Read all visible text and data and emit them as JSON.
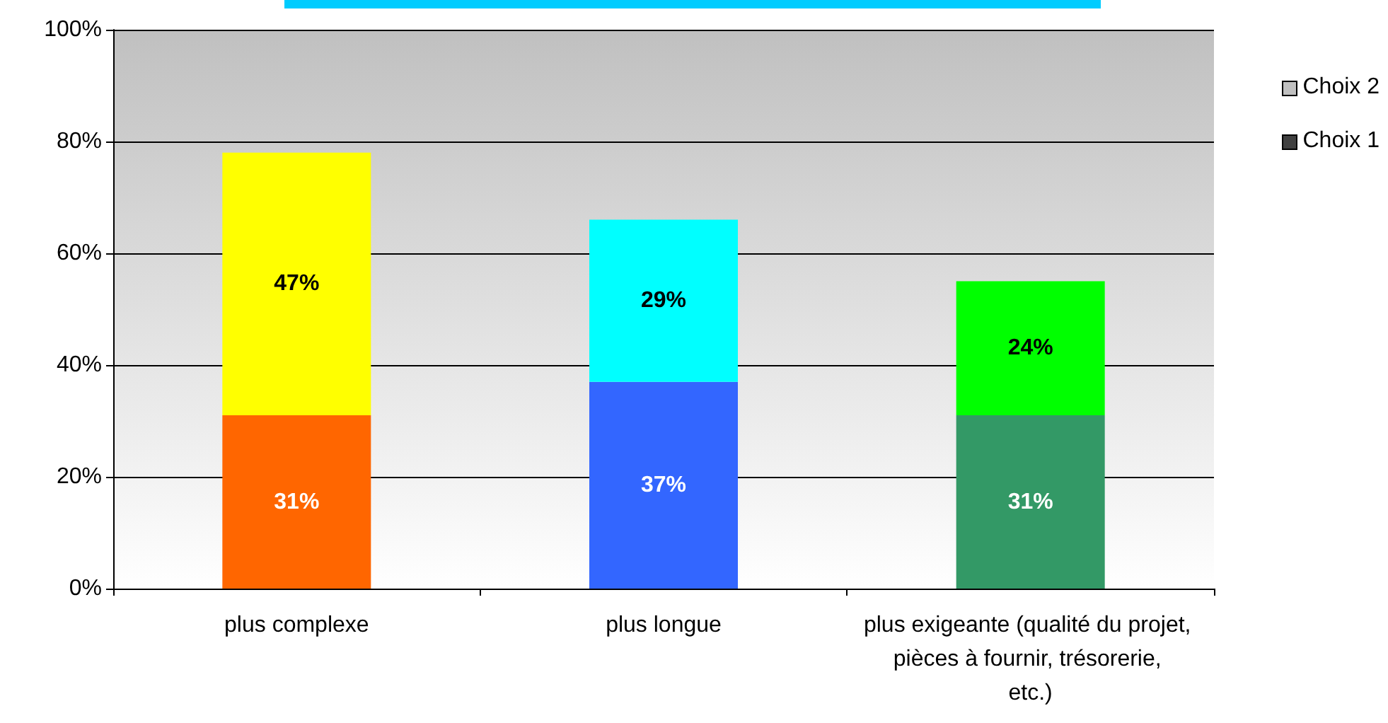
{
  "chart_data": {
    "type": "bar",
    "stacked": true,
    "categories": [
      "plus complexe",
      "plus longue",
      "plus exigeante (qualité du projet, pièces à fournir, trésorerie, etc.)"
    ],
    "series": [
      {
        "name": "Choix 1",
        "color": "#404040",
        "colors": [
          "#ff6600",
          "#3366ff",
          "#339966"
        ],
        "values": [
          31,
          37,
          31
        ],
        "value_labels": [
          "31%",
          "37%",
          "31%"
        ]
      },
      {
        "name": "Choix 2",
        "color": "#c0c0c0",
        "colors": [
          "#ffff00",
          "#00ffff",
          "#00ff00"
        ],
        "values": [
          47,
          29,
          24
        ],
        "value_labels": [
          "47%",
          "29%",
          "24%"
        ]
      }
    ],
    "ylim": [
      0,
      100
    ],
    "yticks": [
      {
        "value": 0,
        "label": "0%"
      },
      {
        "value": 20,
        "label": "20%"
      },
      {
        "value": 40,
        "label": "40%"
      },
      {
        "value": 60,
        "label": "60%"
      },
      {
        "value": 80,
        "label": "80%"
      },
      {
        "value": 100,
        "label": "100%"
      }
    ],
    "grid": "y",
    "legend": "right"
  }
}
